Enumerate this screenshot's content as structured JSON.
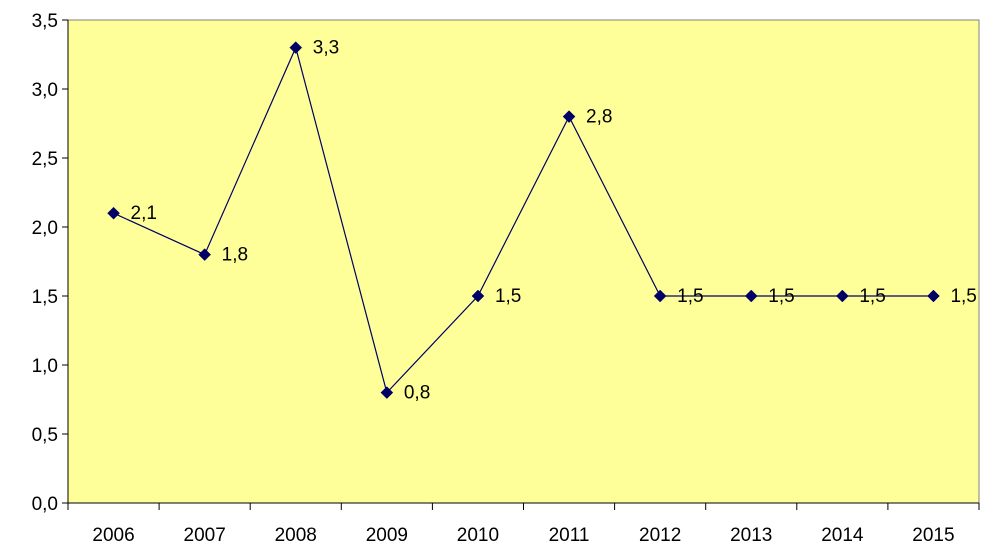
{
  "chart_data": {
    "type": "line",
    "title": "",
    "xlabel": "",
    "ylabel": "",
    "categories": [
      "2006",
      "2007",
      "2008",
      "2009",
      "2010",
      "2011",
      "2012",
      "2013",
      "2014",
      "2015"
    ],
    "series": [
      {
        "values": [
          2.1,
          1.8,
          3.3,
          0.8,
          1.5,
          2.8,
          1.5,
          1.5,
          1.5,
          1.5
        ],
        "data_labels": [
          "2,1",
          "1,8",
          "3,3",
          "0,8",
          "1,5",
          "2,8",
          "1,5",
          "1,5",
          "1,5",
          "1,5"
        ],
        "color": "#000066",
        "marker": "diamond"
      }
    ],
    "ylim": [
      0,
      3.5
    ],
    "y_ticks": [
      0,
      0.5,
      1.0,
      1.5,
      2.0,
      2.5,
      3.0,
      3.5
    ],
    "y_tick_labels": [
      "0,0",
      "0,5",
      "1,0",
      "1,5",
      "2,0",
      "2,5",
      "3,0",
      "3,5"
    ],
    "grid": false,
    "legend": "none",
    "plot_background": "#ffff99",
    "plot_border": "#808080"
  }
}
